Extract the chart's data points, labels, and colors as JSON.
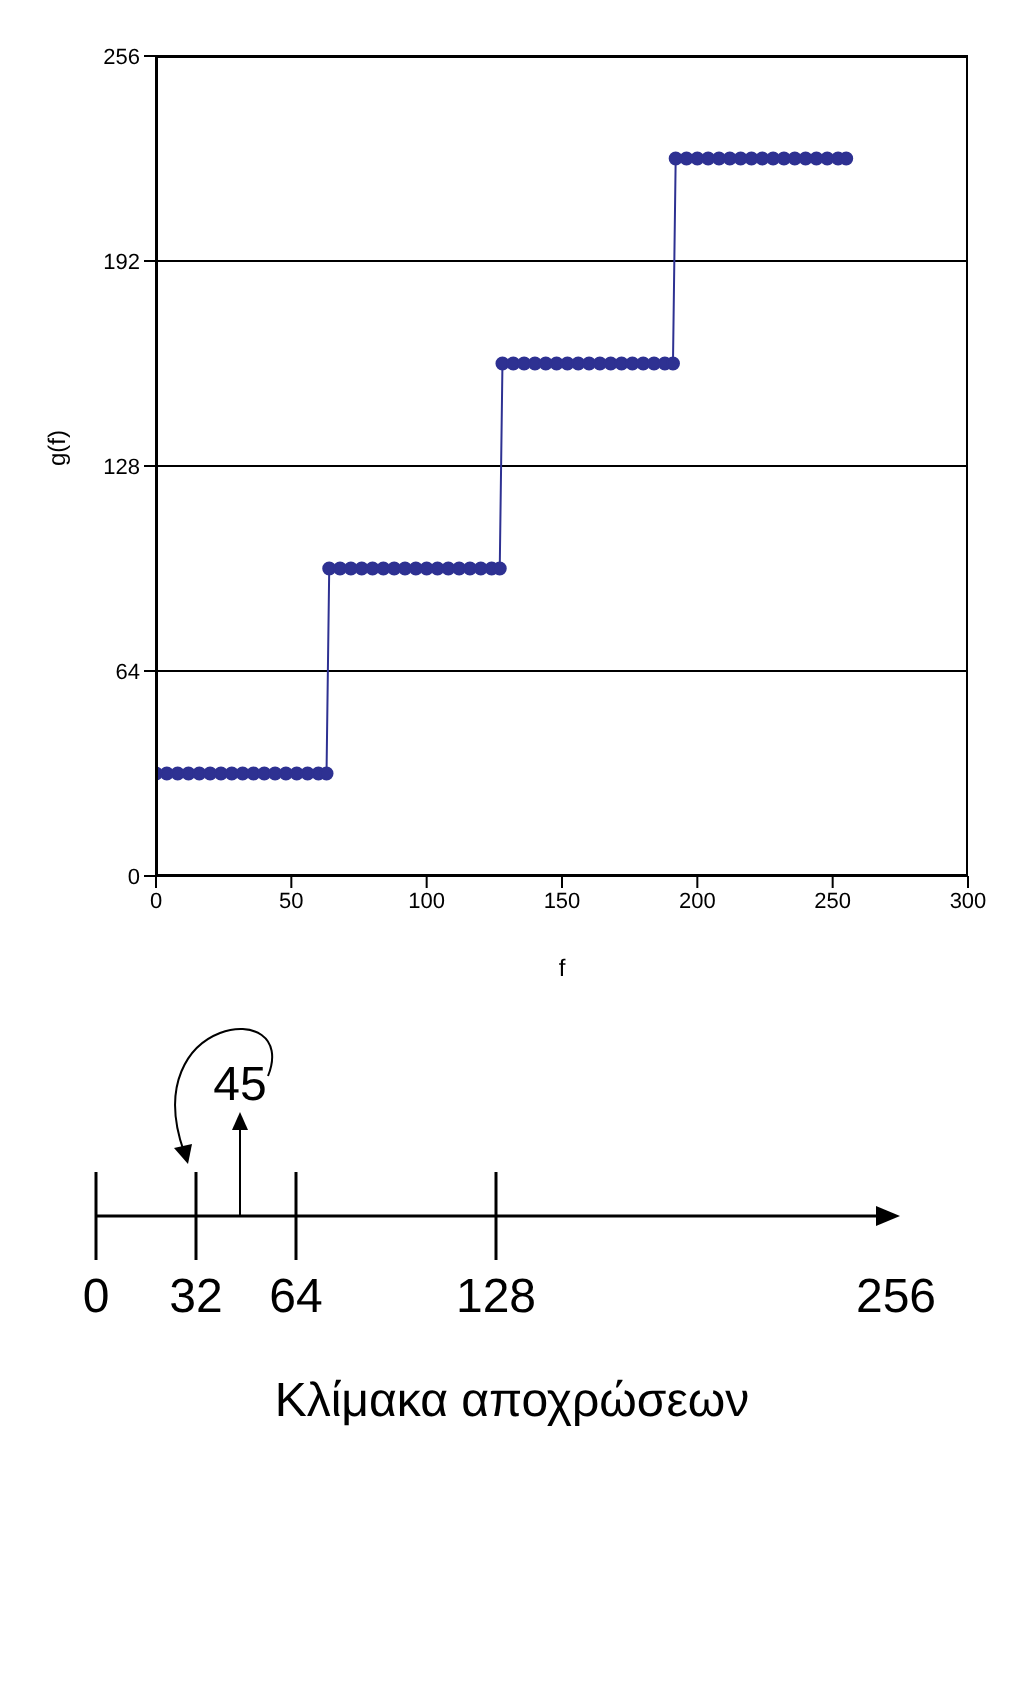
{
  "chart_data": [
    {
      "type": "line",
      "xlabel": "f",
      "ylabel": "g(f)",
      "x": [
        0,
        4,
        8,
        12,
        16,
        20,
        24,
        28,
        32,
        36,
        40,
        44,
        48,
        52,
        56,
        60,
        63,
        64,
        68,
        72,
        76,
        80,
        84,
        88,
        92,
        96,
        100,
        104,
        108,
        112,
        116,
        120,
        124,
        127,
        128,
        132,
        136,
        140,
        144,
        148,
        152,
        156,
        160,
        164,
        168,
        172,
        176,
        180,
        184,
        188,
        191,
        192,
        196,
        200,
        204,
        208,
        212,
        216,
        220,
        224,
        228,
        232,
        236,
        240,
        244,
        248,
        252,
        255
      ],
      "series": [
        {
          "color": "#2e3192",
          "values": [
            32,
            32,
            32,
            32,
            32,
            32,
            32,
            32,
            32,
            32,
            32,
            32,
            32,
            32,
            32,
            32,
            32,
            96,
            96,
            96,
            96,
            96,
            96,
            96,
            96,
            96,
            96,
            96,
            96,
            96,
            96,
            96,
            96,
            96,
            160,
            160,
            160,
            160,
            160,
            160,
            160,
            160,
            160,
            160,
            160,
            160,
            160,
            160,
            160,
            160,
            160,
            224,
            224,
            224,
            224,
            224,
            224,
            224,
            224,
            224,
            224,
            224,
            224,
            224,
            224,
            224,
            224,
            224
          ]
        }
      ],
      "xlim": [
        0,
        300
      ],
      "xticks": [
        0,
        50,
        100,
        150,
        200,
        250,
        300
      ],
      "ylim": [
        0,
        256
      ],
      "yticks": [
        0,
        64,
        128,
        192,
        256
      ],
      "grid": "y",
      "marker": "circle",
      "line_style": "solid"
    },
    {
      "type": "other",
      "title": "Κλίμακα αποχρώσεων",
      "annotations": [
        "0",
        "32",
        "45",
        "64",
        "128",
        "256"
      ]
    }
  ]
}
